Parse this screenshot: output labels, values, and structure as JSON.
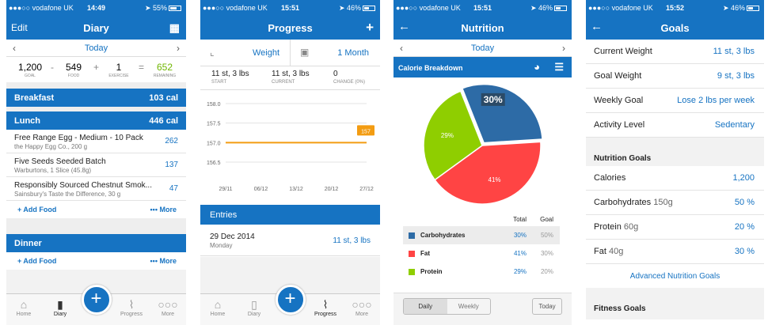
{
  "status": {
    "carrier": "●●●○○ vodafone UK",
    "screens": [
      {
        "time": "14:49",
        "battery": "55%",
        "level": 0.55
      },
      {
        "time": "15:51",
        "battery": "46%",
        "level": 0.46
      },
      {
        "time": "15:51",
        "battery": "46%",
        "level": 0.46
      },
      {
        "time": "15:52",
        "battery": "46%",
        "level": 0.46
      }
    ]
  },
  "diary": {
    "title": "Diary",
    "edit": "Edit",
    "date": "Today",
    "goal": "1,200",
    "goal_cap": "GOAL",
    "food": "549",
    "food_cap": "FOOD",
    "exercise": "1",
    "exercise_cap": "EXERCISE",
    "remaining": "652",
    "remaining_cap": "REMAINING",
    "breakfast": {
      "name": "Breakfast",
      "cal": "103 cal"
    },
    "lunch": {
      "name": "Lunch",
      "cal": "446 cal"
    },
    "foods": [
      {
        "name": "Free Range Egg - Medium - 10 Pack",
        "sub": "the Happy Egg Co., 200 g",
        "cal": "262"
      },
      {
        "name": "Five Seeds Seeded Batch",
        "sub": "Warburtons, 1 Slice (45.8g)",
        "cal": "137"
      },
      {
        "name": "Responsibly Sourced Chestnut Smok...",
        "sub": "Sainsbury's Taste the Difference, 30 g",
        "cal": "47"
      }
    ],
    "add_food": "+ Add Food",
    "more": "••• More",
    "dinner": {
      "name": "Dinner"
    }
  },
  "tabs": {
    "home": "Home",
    "diary": "Diary",
    "progress": "Progress",
    "more": "More"
  },
  "progress": {
    "title": "Progress",
    "metric": "Weight",
    "range": "1 Month",
    "start": "11 st, 3 lbs",
    "start_cap": "START",
    "current": "11 st, 3 lbs",
    "current_cap": "CURRENT",
    "change": "0",
    "change_cap": "CHANGE (0%)",
    "entries": "Entries",
    "entry_date": "29 Dec 2014",
    "entry_day": "Monday",
    "entry_value": "11 st, 3 lbs"
  },
  "chart_data": {
    "type": "line",
    "yticks": [
      "158.0",
      "157.5",
      "157.0",
      "156.5"
    ],
    "ylim": [
      156.5,
      158.0
    ],
    "x": [
      "29/11",
      "06/12",
      "13/12",
      "20/12",
      "27/12"
    ],
    "values": [
      157,
      157,
      157,
      157,
      157
    ],
    "marker_label": "157",
    "line_color": "#f39c12"
  },
  "nutrition": {
    "title": "Nutrition",
    "date": "Today",
    "breakdown": "Calorie Breakdown",
    "pie": [
      {
        "name": "Carbohydrates",
        "pct": 30,
        "label": "30%",
        "color": "#2d6ba6"
      },
      {
        "name": "Fat",
        "pct": 41,
        "label": "41%",
        "color": "#f44"
      },
      {
        "name": "Protein",
        "pct": 29,
        "label": "29%",
        "color": "#8fce00"
      }
    ],
    "col_total": "Total",
    "col_goal": "Goal",
    "rows": [
      {
        "name": "Carbohydrates",
        "total": "30%",
        "goal": "50%",
        "color": "#2d6ba6"
      },
      {
        "name": "Fat",
        "total": "41%",
        "goal": "30%",
        "color": "#f44"
      },
      {
        "name": "Protein",
        "total": "29%",
        "goal": "20%",
        "color": "#8fce00"
      }
    ],
    "daily": "Daily",
    "weekly": "Weekly",
    "today": "Today"
  },
  "goals": {
    "title": "Goals",
    "rows": [
      {
        "k": "Current Weight",
        "v": "11 st, 3 lbs"
      },
      {
        "k": "Goal Weight",
        "v": "9 st, 3 lbs"
      },
      {
        "k": "Weekly Goal",
        "v": "Lose 2 lbs per week"
      },
      {
        "k": "Activity Level",
        "v": "Sedentary"
      }
    ],
    "nutrition_head": "Nutrition Goals",
    "nrows": [
      {
        "k": "Calories",
        "sub": "",
        "v": "1,200"
      },
      {
        "k": "Carbohydrates",
        "sub": "150g",
        "v": "50 %"
      },
      {
        "k": "Protein",
        "sub": "60g",
        "v": "20 %"
      },
      {
        "k": "Fat",
        "sub": "40g",
        "v": "30 %"
      }
    ],
    "advanced": "Advanced Nutrition Goals",
    "fitness_head": "Fitness Goals"
  }
}
